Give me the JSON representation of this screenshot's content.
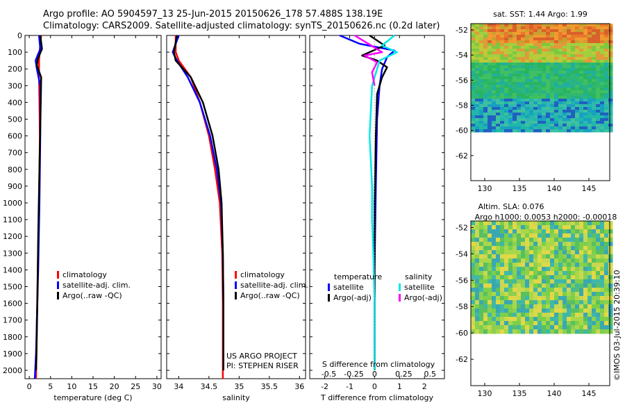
{
  "header": {
    "line1": "Argo profile: AO 5904597_13 25-Jun-2015 20150626_178 57.488S 138.19E",
    "line2": "Climatology: CARS2009. Satellite-adjusted climatology: synTS_20150626.nc (0.2d later)"
  },
  "footer": {
    "project": "US ARGO PROJECT",
    "pi": "PI: STEPHEN RISER",
    "stamp": "©IMOS 03-Jul-2015 20:39:10"
  },
  "colors": {
    "climatology": "#ff0000",
    "satellite": "#0000ff",
    "argo": "#000000",
    "sat_salinity": "#00e8e8",
    "argo_salinity": "#ff00ff"
  },
  "chart_data": [
    {
      "type": "line",
      "name": "temperature",
      "xlabel": "temperature (deg C)",
      "ylabel": "",
      "xlim": [
        -1,
        31
      ],
      "ylim": [
        2050,
        0
      ],
      "xticks": [
        0,
        5,
        10,
        15,
        20,
        25,
        30
      ],
      "yticks": [
        0,
        100,
        200,
        300,
        400,
        500,
        600,
        700,
        800,
        900,
        1000,
        1100,
        1200,
        1300,
        1400,
        1500,
        1600,
        1700,
        1800,
        1900,
        2000
      ],
      "legend": [
        "climatology",
        "satellite-adj. clim.",
        "Argo(..raw -QC)"
      ],
      "legend_position": "lower-left",
      "series": [
        {
          "name": "climatology",
          "color": "#ff0000",
          "x": [
            2.8,
            2.5,
            2.3,
            2.3,
            2.4,
            2.5,
            2.3,
            2.0,
            1.8,
            1.7,
            1.6
          ],
          "y": [
            0,
            80,
            150,
            250,
            400,
            600,
            1000,
            1400,
            1700,
            1900,
            2050
          ]
        },
        {
          "name": "satellite-adj. clim.",
          "color": "#0000ff",
          "x": [
            2.3,
            2.6,
            1.5,
            1.8,
            2.6,
            2.6,
            2.4,
            2.1,
            1.8,
            1.6,
            1.3
          ],
          "y": [
            0,
            80,
            150,
            200,
            300,
            600,
            1000,
            1400,
            1700,
            1900,
            2050
          ]
        },
        {
          "name": "Argo(..raw -QC)",
          "color": "#000000",
          "x": [
            2.6,
            3.0,
            2.0,
            1.8,
            2.8,
            2.7,
            2.4,
            2.1,
            1.9,
            1.7,
            1.6
          ],
          "y": [
            0,
            80,
            140,
            180,
            250,
            400,
            800,
            1200,
            1600,
            1900,
            2000
          ]
        }
      ]
    },
    {
      "type": "line",
      "name": "salinity",
      "xlabel": "salinity",
      "ylabel": "",
      "xlim": [
        33.8,
        36.1
      ],
      "ylim": [
        2050,
        0
      ],
      "xticks": [
        34,
        34.5,
        35,
        35.5,
        36
      ],
      "legend": [
        "climatology",
        "satellite-adj. clim.",
        "Argo(..raw -QC)"
      ],
      "legend_position": "lower-left",
      "series": [
        {
          "name": "climatology",
          "color": "#ff0000",
          "x": [
            33.95,
            33.95,
            34.0,
            34.2,
            34.35,
            34.5,
            34.6,
            34.68,
            34.72,
            34.73,
            34.73
          ],
          "y": [
            0,
            100,
            150,
            250,
            400,
            600,
            800,
            1000,
            1300,
            1600,
            2050
          ]
        },
        {
          "name": "satellite-adj. clim.",
          "color": "#0000ff",
          "x": [
            34.0,
            33.9,
            33.97,
            34.15,
            34.35,
            34.52,
            34.63,
            34.7,
            34.73,
            34.74,
            34.74
          ],
          "y": [
            0,
            100,
            150,
            250,
            400,
            600,
            800,
            1000,
            1300,
            1600,
            2000
          ]
        },
        {
          "name": "Argo(..raw -QC)",
          "color": "#000000",
          "x": [
            33.97,
            33.92,
            33.95,
            34.2,
            34.4,
            34.56,
            34.66,
            34.71,
            34.73,
            34.74,
            34.74
          ],
          "y": [
            0,
            100,
            150,
            250,
            400,
            600,
            800,
            1000,
            1300,
            1600,
            2000
          ]
        }
      ]
    },
    {
      "type": "line",
      "name": "difference",
      "xlabel": "T difference from climatology",
      "x2label": "S difference from climatology",
      "xlim": [
        -2.6,
        2.8
      ],
      "ylim": [
        2050,
        0
      ],
      "xticks": [
        -2,
        -1,
        0,
        1,
        2
      ],
      "x2ticks": [
        "-0.5",
        "-0.25",
        "0",
        "0.25",
        "0.5"
      ],
      "legend_temperature_title": "temperature",
      "legend_salinity_title": "salinity",
      "legend": [
        "satellite",
        "Argo(-adj)",
        "satellite",
        "Argo(-adj)"
      ],
      "legend_position": "lower-center",
      "series": [
        {
          "name": "satellite",
          "group": "temperature",
          "color": "#0000ff",
          "x": [
            -1.4,
            -0.6,
            0.1,
            0.8,
            0.5,
            0.3,
            0.2,
            0.1,
            0.05,
            0.0,
            0.0
          ],
          "y": [
            0,
            50,
            70,
            90,
            130,
            200,
            300,
            500,
            900,
            1400,
            2000
          ]
        },
        {
          "name": "Argo(-adj)",
          "group": "temperature",
          "color": "#000000",
          "x": [
            -0.2,
            0.4,
            -0.5,
            0.1,
            0.5,
            0.3,
            0.1,
            0.05,
            0.0,
            0.0,
            0.0
          ],
          "y": [
            0,
            60,
            120,
            150,
            190,
            250,
            350,
            600,
            1000,
            1500,
            2000
          ]
        },
        {
          "name": "satellite",
          "group": "salinity",
          "color": "#00e8e8",
          "x": [
            0.8,
            0.3,
            0.9,
            0.2,
            -0.1,
            -0.2,
            -0.1,
            -0.1,
            -0.05,
            0.0,
            0.0
          ],
          "y": [
            0,
            60,
            100,
            150,
            300,
            600,
            900,
            1100,
            1300,
            1600,
            2000
          ]
        },
        {
          "name": "Argo(-adj)",
          "group": "salinity",
          "color": "#ff00ff",
          "x": [
            -0.8,
            0.3,
            -0.4,
            0.1,
            -0.1,
            0.0
          ],
          "y": [
            0,
            100,
            120,
            160,
            220,
            300
          ]
        }
      ]
    },
    {
      "type": "heatmap",
      "name": "sst-map",
      "title": "sat. SST: 1.44  Argo: 1.99",
      "xticks": [
        130,
        135,
        140,
        145
      ],
      "yticks": [
        -52,
        -54,
        -56,
        -58,
        -60,
        -62
      ],
      "xlim": [
        128,
        148
      ],
      "ylim": [
        -64,
        -51.5
      ],
      "data_extent_lat": [
        -60,
        -51.5
      ],
      "pattern": "warm (orange) in north, green-cyan-blue to south, white below -60"
    },
    {
      "type": "heatmap",
      "name": "sla-map",
      "title": "Altim. SLA: 0.076",
      "subtitle": "Argo h1000: 0.0053  h2000: -0.00018",
      "xticks": [
        130,
        135,
        140,
        145
      ],
      "yticks": [
        -52,
        -54,
        -56,
        -58,
        -60,
        -62
      ],
      "xlim": [
        128,
        148
      ],
      "ylim": [
        -64,
        -51.5
      ],
      "data_extent_lat": [
        -60,
        -51.5
      ],
      "pattern": "mottled green/yellow/cyan field, white below -60"
    }
  ]
}
